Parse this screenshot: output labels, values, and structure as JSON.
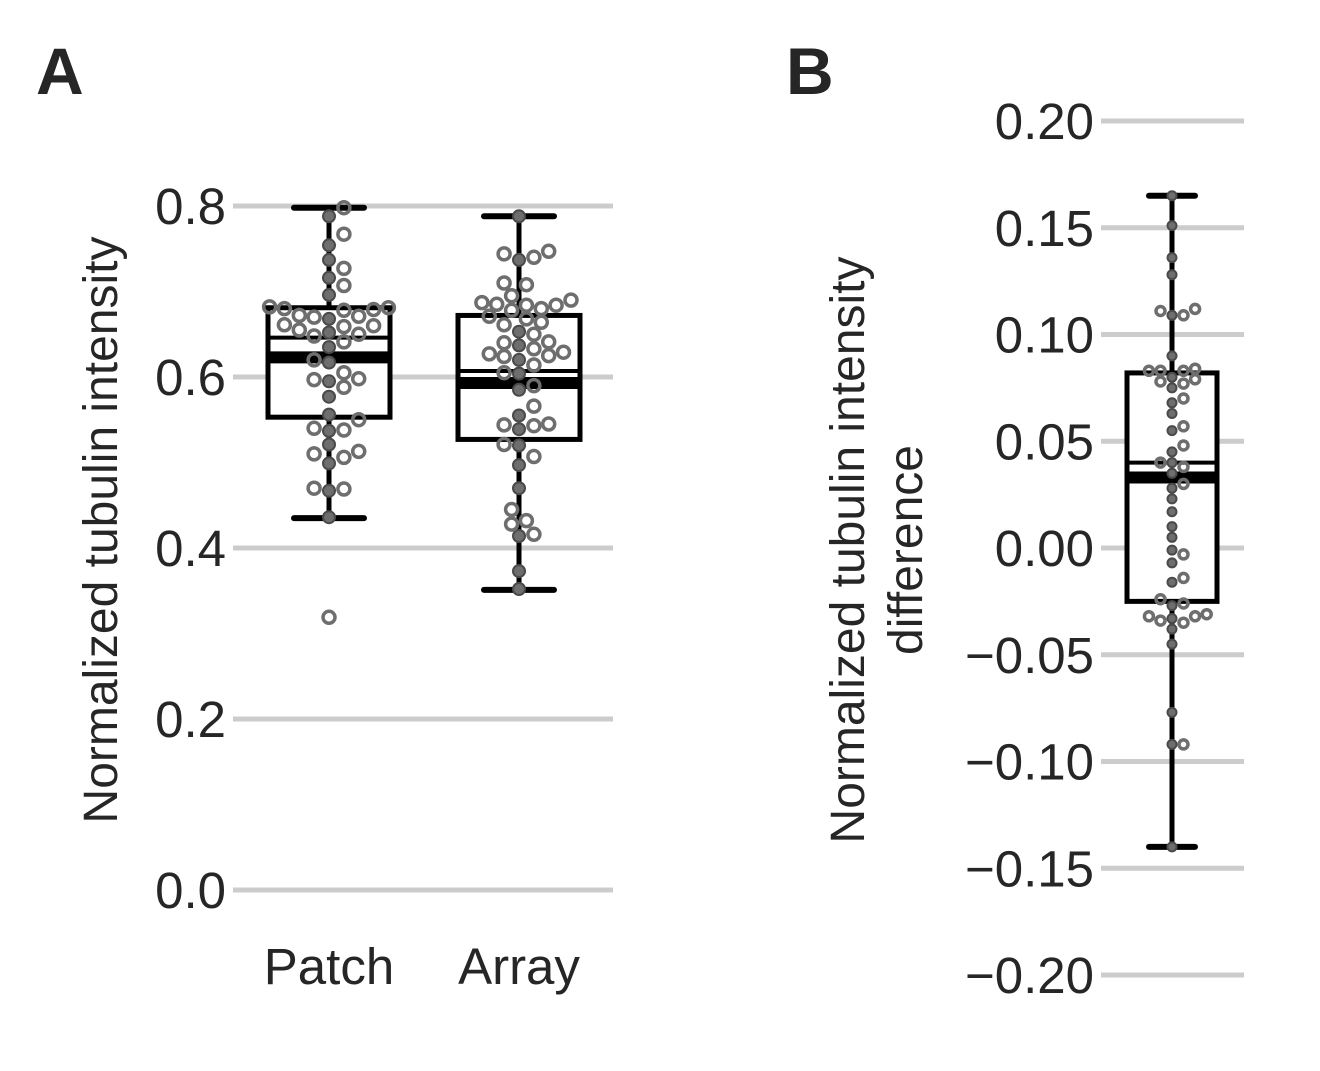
{
  "chart_data": [
    {
      "panel": "A",
      "type": "box",
      "ylabel": "Normalized tubulin intensity",
      "xlabel": "",
      "ylim": [
        -0.05,
        0.86
      ],
      "yticks": [
        0.0,
        0.2,
        0.4,
        0.6,
        0.8
      ],
      "ytick_labels": [
        "0.0",
        "0.2",
        "0.4",
        "0.6",
        "0.8"
      ],
      "grid": true,
      "categories": [
        "Patch",
        "Array"
      ],
      "boxes": [
        {
          "name": "Patch",
          "whisker_low": 0.435,
          "q1": 0.553,
          "median": 0.623,
          "mean": 0.646,
          "q3": 0.681,
          "whisker_high": 0.798,
          "outliers": [
            0.319
          ]
        },
        {
          "name": "Array",
          "whisker_low": 0.351,
          "q1": 0.527,
          "median": 0.593,
          "mean": 0.607,
          "q3": 0.672,
          "whisker_high": 0.788,
          "outliers": []
        }
      ],
      "points": {
        "Patch": [
          0.798,
          0.788,
          0.767,
          0.754,
          0.737,
          0.727,
          0.716,
          0.707,
          0.696,
          0.682,
          0.681,
          0.68,
          0.679,
          0.678,
          0.672,
          0.671,
          0.67,
          0.668,
          0.661,
          0.66,
          0.659,
          0.655,
          0.652,
          0.65,
          0.648,
          0.641,
          0.635,
          0.62,
          0.617,
          0.605,
          0.598,
          0.597,
          0.595,
          0.588,
          0.577,
          0.556,
          0.55,
          0.54,
          0.538,
          0.537,
          0.521,
          0.513,
          0.51,
          0.506,
          0.499,
          0.47,
          0.469,
          0.467,
          0.436,
          0.319
        ],
        "Array": [
          0.788,
          0.747,
          0.744,
          0.74,
          0.737,
          0.71,
          0.708,
          0.695,
          0.69,
          0.687,
          0.685,
          0.684,
          0.684,
          0.68,
          0.678,
          0.671,
          0.668,
          0.664,
          0.661,
          0.653,
          0.65,
          0.641,
          0.64,
          0.637,
          0.633,
          0.629,
          0.627,
          0.625,
          0.624,
          0.62,
          0.614,
          0.605,
          0.604,
          0.59,
          0.585,
          0.566,
          0.555,
          0.545,
          0.544,
          0.543,
          0.539,
          0.521,
          0.52,
          0.507,
          0.497,
          0.47,
          0.445,
          0.432,
          0.428,
          0.416,
          0.414,
          0.373,
          0.352
        ]
      }
    },
    {
      "panel": "B",
      "type": "box",
      "ylabel": "Normalized tubulin intensity\ndifference",
      "xlabel": "",
      "ylim": [
        -0.205,
        0.205
      ],
      "yticks": [
        -0.2,
        -0.15,
        -0.1,
        -0.05,
        0.0,
        0.05,
        0.1,
        0.15,
        0.2
      ],
      "ytick_labels": [
        "−0.20",
        "−0.15",
        "−0.10",
        "−0.05",
        "0.00",
        "0.05",
        "0.10",
        "0.15",
        "0.20"
      ],
      "grid": true,
      "categories": [
        ""
      ],
      "boxes": [
        {
          "name": "",
          "whisker_low": -0.14,
          "q1": -0.025,
          "median": 0.033,
          "mean": 0.04,
          "q3": 0.082,
          "whisker_high": 0.165,
          "outliers": []
        }
      ],
      "points": {
        "difference": [
          0.165,
          0.151,
          0.136,
          0.128,
          0.112,
          0.111,
          0.109,
          0.109,
          0.09,
          0.084,
          0.083,
          0.083,
          0.083,
          0.08,
          0.079,
          0.078,
          0.077,
          0.075,
          0.07,
          0.068,
          0.063,
          0.057,
          0.055,
          0.048,
          0.045,
          0.04,
          0.04,
          0.038,
          0.035,
          0.03,
          0.028,
          0.023,
          0.017,
          0.01,
          0.005,
          -0.001,
          -0.003,
          -0.007,
          -0.014,
          -0.016,
          -0.024,
          -0.026,
          -0.027,
          -0.031,
          -0.032,
          -0.032,
          -0.033,
          -0.034,
          -0.035,
          -0.038,
          -0.045,
          -0.077,
          -0.092,
          -0.092,
          -0.14
        ]
      }
    }
  ]
}
